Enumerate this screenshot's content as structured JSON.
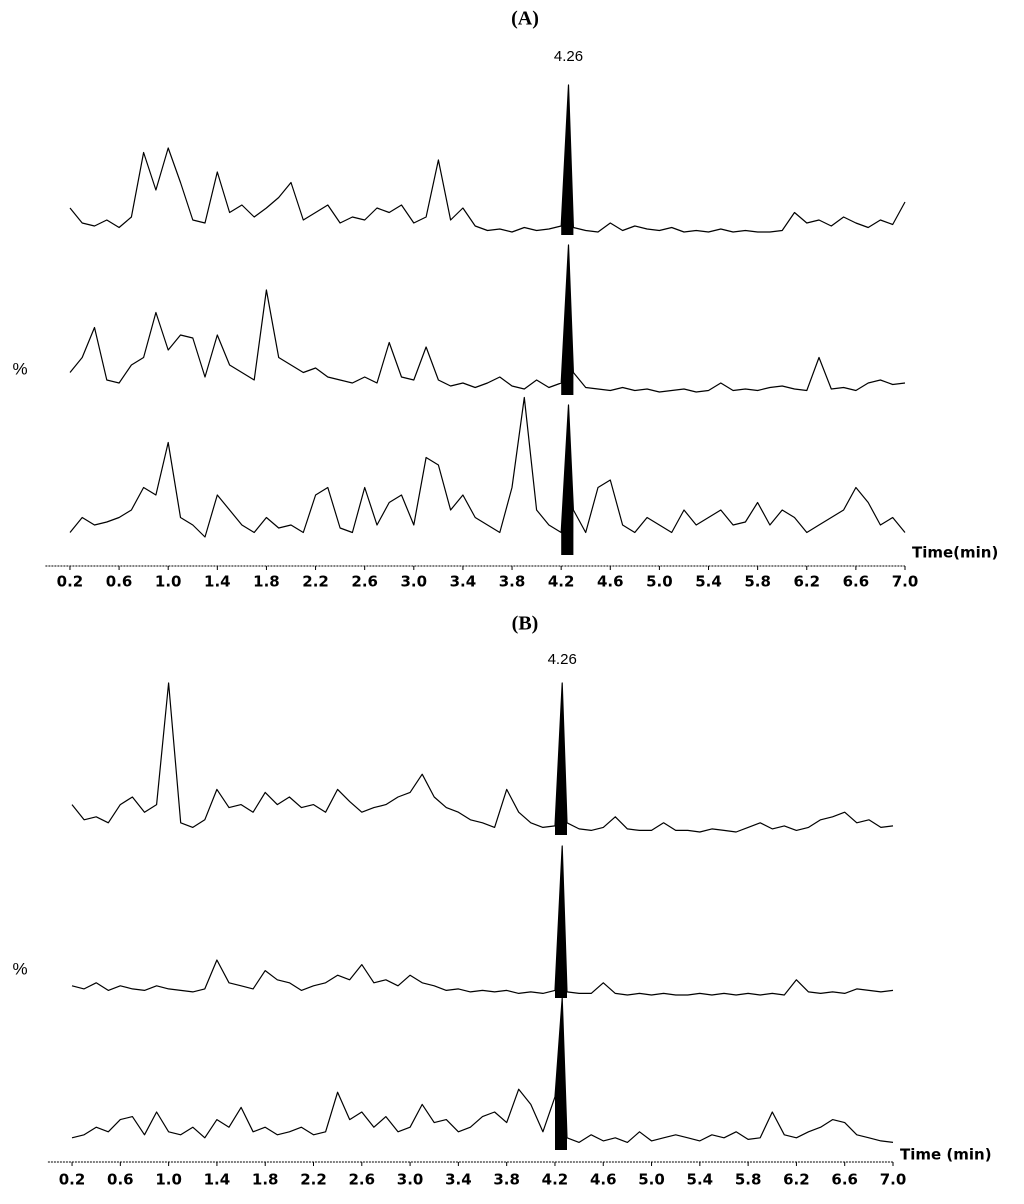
{
  "chart_data": [
    {
      "type": "line",
      "title": "(A)",
      "annotation": 4.26,
      "ylabel": "%",
      "xlabel": "Time(min)",
      "color": "#000000",
      "xlim": [
        0,
        7
      ],
      "ylim": [
        0,
        100
      ],
      "xticks": [
        0.2,
        0.6,
        {
          "value": 1,
          "label": "1.0"
        },
        1.4,
        1.8,
        2.2,
        2.6,
        {
          "value": 3,
          "label": "3.0"
        },
        3.4,
        3.8,
        4.2,
        4.6,
        {
          "value": 5,
          "label": "5.0"
        },
        5.4,
        5.8,
        6.2,
        6.6,
        {
          "value": 7,
          "label": "7.0"
        }
      ],
      "x": [
        0.2,
        0.3,
        0.4,
        0.5,
        0.6,
        0.7,
        0.8,
        0.9,
        1.0,
        1.1,
        1.2,
        1.3,
        1.4,
        1.5,
        1.6,
        1.7,
        1.8,
        1.9,
        2.0,
        2.1,
        2.2,
        2.3,
        2.4,
        2.5,
        2.6,
        2.7,
        2.8,
        2.9,
        3.0,
        3.1,
        3.2,
        3.3,
        3.4,
        3.5,
        3.6,
        3.7,
        3.8,
        3.9,
        4.0,
        4.1,
        4.2,
        4.26,
        4.3,
        4.4,
        4.5,
        4.6,
        4.7,
        4.8,
        4.9,
        5.0,
        5.1,
        5.2,
        5.3,
        5.4,
        5.5,
        5.6,
        5.7,
        5.8,
        5.9,
        6.0,
        6.1,
        6.2,
        6.3,
        6.4,
        6.5,
        6.6,
        6.7,
        6.8,
        6.9,
        7.0
      ],
      "series": [
        {
          "values": [
            18,
            8,
            6,
            10,
            5,
            12,
            55,
            30,
            58,
            35,
            10,
            8,
            42,
            15,
            20,
            12,
            18,
            25,
            35,
            10,
            15,
            20,
            8,
            12,
            10,
            18,
            15,
            20,
            8,
            12,
            50,
            10,
            18,
            6,
            3,
            4,
            2,
            5,
            3,
            4,
            6,
            100,
            5,
            3,
            2,
            8,
            3,
            6,
            4,
            3,
            5,
            2,
            3,
            2,
            4,
            2,
            3,
            2,
            2,
            3,
            15,
            8,
            10,
            6,
            12,
            8,
            5,
            10,
            7,
            22
          ]
        },
        {
          "values": [
            15,
            25,
            45,
            10,
            8,
            20,
            25,
            55,
            30,
            40,
            38,
            12,
            40,
            20,
            15,
            10,
            70,
            25,
            20,
            15,
            18,
            12,
            10,
            8,
            12,
            8,
            35,
            12,
            10,
            32,
            10,
            6,
            8,
            5,
            8,
            12,
            6,
            4,
            10,
            5,
            8,
            100,
            15,
            5,
            4,
            3,
            5,
            3,
            4,
            2,
            3,
            4,
            2,
            3,
            8,
            3,
            4,
            3,
            5,
            6,
            4,
            3,
            25,
            4,
            5,
            3,
            8,
            10,
            7,
            8
          ]
        },
        {
          "values": [
            15,
            25,
            20,
            22,
            25,
            30,
            45,
            40,
            75,
            25,
            20,
            12,
            40,
            30,
            20,
            15,
            25,
            18,
            20,
            15,
            40,
            45,
            18,
            15,
            45,
            20,
            35,
            40,
            20,
            65,
            60,
            30,
            40,
            25,
            20,
            15,
            45,
            105,
            30,
            20,
            15,
            100,
            30,
            15,
            45,
            50,
            20,
            15,
            25,
            20,
            15,
            30,
            20,
            25,
            30,
            20,
            22,
            35,
            20,
            30,
            25,
            15,
            20,
            25,
            30,
            45,
            35,
            20,
            25,
            15
          ]
        }
      ]
    },
    {
      "type": "line",
      "title": "(B)",
      "annotation": 4.26,
      "ylabel": "%",
      "xlabel": "Time (min)",
      "color": "#000000",
      "xlim": [
        0,
        7
      ],
      "ylim": [
        0,
        100
      ],
      "xticks": [
        0.2,
        0.6,
        {
          "value": 1,
          "label": "1.0"
        },
        1.4,
        1.8,
        2.2,
        2.6,
        {
          "value": 3,
          "label": "3.0"
        },
        3.4,
        3.8,
        4.2,
        4.6,
        {
          "value": 5,
          "label": "5.0"
        },
        5.4,
        5.8,
        6.2,
        6.6,
        {
          "value": 7,
          "label": "7.0"
        }
      ],
      "x": [
        0.2,
        0.3,
        0.4,
        0.5,
        0.6,
        0.7,
        0.8,
        0.9,
        1.0,
        1.1,
        1.2,
        1.3,
        1.4,
        1.5,
        1.6,
        1.7,
        1.8,
        1.9,
        2.0,
        2.1,
        2.2,
        2.3,
        2.4,
        2.5,
        2.6,
        2.7,
        2.8,
        2.9,
        3.0,
        3.1,
        3.2,
        3.3,
        3.4,
        3.5,
        3.6,
        3.7,
        3.8,
        3.9,
        4.0,
        4.1,
        4.2,
        4.26,
        4.3,
        4.4,
        4.5,
        4.6,
        4.7,
        4.8,
        4.9,
        5.0,
        5.1,
        5.2,
        5.3,
        5.4,
        5.5,
        5.6,
        5.7,
        5.8,
        5.9,
        6.0,
        6.1,
        6.2,
        6.3,
        6.4,
        6.5,
        6.6,
        6.7,
        6.8,
        6.9,
        7.0
      ],
      "series": [
        {
          "values": [
            20,
            10,
            12,
            8,
            20,
            25,
            15,
            20,
            100,
            8,
            5,
            10,
            30,
            18,
            20,
            15,
            28,
            20,
            25,
            18,
            20,
            15,
            30,
            22,
            15,
            18,
            20,
            25,
            28,
            40,
            25,
            18,
            15,
            10,
            8,
            5,
            30,
            15,
            8,
            5,
            6,
            100,
            8,
            4,
            3,
            5,
            12,
            4,
            3,
            3,
            8,
            3,
            3,
            2,
            4,
            3,
            2,
            5,
            8,
            4,
            6,
            3,
            5,
            10,
            12,
            15,
            8,
            10,
            5,
            6
          ]
        },
        {
          "values": [
            8,
            6,
            10,
            5,
            8,
            6,
            5,
            8,
            6,
            5,
            4,
            6,
            25,
            10,
            8,
            6,
            18,
            12,
            10,
            5,
            8,
            10,
            15,
            12,
            22,
            10,
            12,
            8,
            15,
            10,
            8,
            5,
            6,
            4,
            5,
            4,
            5,
            3,
            4,
            3,
            5,
            100,
            4,
            3,
            3,
            10,
            3,
            2,
            3,
            2,
            3,
            2,
            2,
            3,
            2,
            3,
            2,
            3,
            2,
            3,
            2,
            12,
            4,
            3,
            4,
            3,
            6,
            5,
            4,
            5
          ]
        },
        {
          "values": [
            8,
            10,
            15,
            12,
            20,
            22,
            10,
            25,
            12,
            10,
            15,
            8,
            20,
            15,
            28,
            12,
            15,
            10,
            12,
            15,
            10,
            12,
            38,
            20,
            25,
            15,
            22,
            12,
            15,
            30,
            18,
            20,
            12,
            15,
            22,
            25,
            18,
            40,
            30,
            12,
            35,
            100,
            8,
            5,
            10,
            6,
            8,
            5,
            12,
            6,
            8,
            10,
            8,
            6,
            10,
            8,
            12,
            7,
            8,
            25,
            10,
            8,
            12,
            15,
            20,
            18,
            10,
            8,
            6,
            5
          ]
        }
      ]
    }
  ]
}
